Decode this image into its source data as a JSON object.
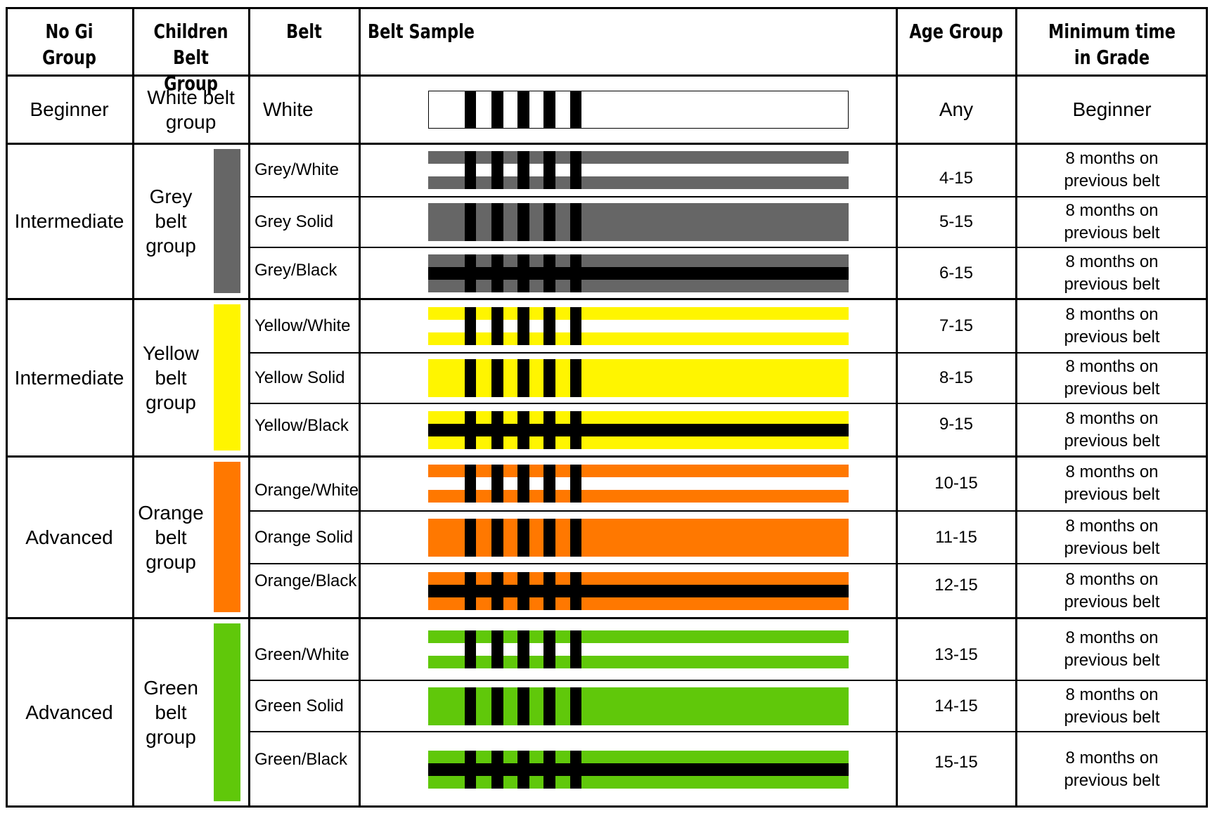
{
  "headers": {
    "no_gi_line1": "No Gi",
    "no_gi_line2": "Group",
    "children_line1": "Children",
    "children_line2": "Belt Group",
    "belt": "Belt",
    "belt_sample": "Belt Sample",
    "age_group": "Age Group",
    "min_time_line1": "Minimum time",
    "min_time_line2": "in Grade"
  },
  "groups": [
    {
      "no_gi": "Beginner",
      "children": [
        "White belt",
        "group"
      ]
    },
    {
      "no_gi": "Intermediate",
      "children": [
        "Grey",
        "belt",
        "group"
      ],
      "color": "#666666"
    },
    {
      "no_gi": "Intermediate",
      "children": [
        "Yellow",
        "belt",
        "group"
      ],
      "color": "#FFF500"
    },
    {
      "no_gi": "Advanced",
      "children": [
        "Orange",
        "belt",
        "group"
      ],
      "color": "#FF7800"
    },
    {
      "no_gi": "Advanced",
      "children": [
        "Green",
        "belt",
        "group"
      ],
      "color": "#60C80A"
    }
  ],
  "rows": [
    {
      "belt": "White",
      "age": "Any",
      "time": [
        "Beginner"
      ],
      "pattern": "solid",
      "color": "#FFFFFF"
    },
    {
      "belt": "Grey/White",
      "age": "4-15",
      "time": [
        "8 months on",
        "previous belt"
      ],
      "pattern": "white-stripe",
      "color": "#666666"
    },
    {
      "belt": "Grey Solid",
      "age": "5-15",
      "time": [
        "8 months on",
        "previous belt"
      ],
      "pattern": "solid",
      "color": "#666666"
    },
    {
      "belt": "Grey/Black",
      "age": "6-15",
      "time": [
        "8 months on",
        "previous belt"
      ],
      "pattern": "black-stripe",
      "color": "#666666"
    },
    {
      "belt": "Yellow/White",
      "age": "7-15",
      "time": [
        "8 months on",
        "previous belt"
      ],
      "pattern": "white-stripe",
      "color": "#FFF500"
    },
    {
      "belt": "Yellow Solid",
      "age": "8-15",
      "time": [
        "8 months on",
        "previous belt"
      ],
      "pattern": "solid",
      "color": "#FFF500"
    },
    {
      "belt": "Yellow/Black",
      "age": "9-15",
      "time": [
        "8 months on",
        "previous belt"
      ],
      "pattern": "black-stripe",
      "color": "#FFF500"
    },
    {
      "belt": "Orange/White",
      "age": "10-15",
      "time": [
        "8 months on",
        "previous belt"
      ],
      "pattern": "white-stripe",
      "color": "#FF7800"
    },
    {
      "belt": "Orange Solid",
      "age": "11-15",
      "time": [
        "8 months on",
        "previous belt"
      ],
      "pattern": "solid",
      "color": "#FF7800"
    },
    {
      "belt": "Orange/Black",
      "age": "12-15",
      "time": [
        "8 months on",
        "previous belt"
      ],
      "pattern": "black-stripe",
      "color": "#FF7800"
    },
    {
      "belt": "Green/White",
      "age": "13-15",
      "time": [
        "8 months on",
        "previous belt"
      ],
      "pattern": "white-stripe",
      "color": "#60C80A"
    },
    {
      "belt": "Green Solid",
      "age": "14-15",
      "time": [
        "8 months on",
        "previous belt"
      ],
      "pattern": "solid",
      "color": "#60C80A"
    },
    {
      "belt": "Green/Black",
      "age": "15-15",
      "time": [
        "8 months on",
        "previous belt"
      ],
      "pattern": "black-stripe",
      "color": "#60C80A"
    }
  ]
}
